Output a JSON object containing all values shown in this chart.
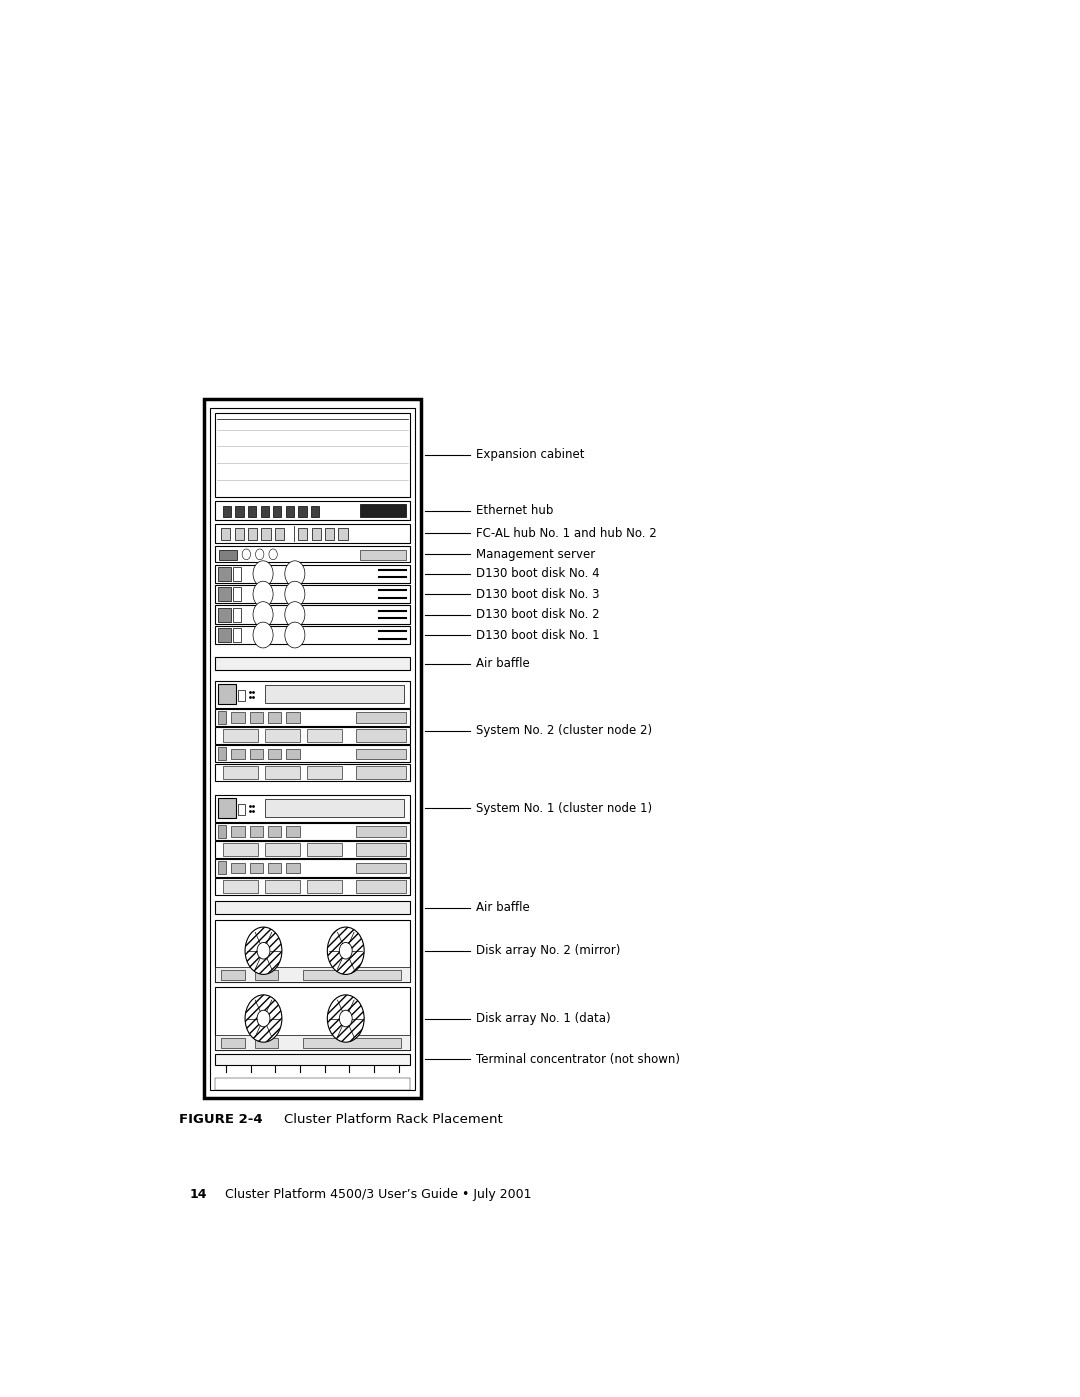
{
  "fig_width": 10.8,
  "fig_height": 13.97,
  "bg_color": "#ffffff",
  "label_texts": [
    "Expansion cabinet",
    "Ethernet hub",
    "FC-AL hub No. 1 and hub No. 2",
    "Management server",
    "D130 boot disk No. 4",
    "D130 boot disk No. 3",
    "D130 boot disk No. 2",
    "D130 boot disk No. 1",
    "Air baffle",
    "System No. 2 (cluster node 2)",
    "System No. 1 (cluster node 1)",
    "Air baffle",
    "Disk array No. 2 (mirror)",
    "Disk array No. 1 (data)",
    "Terminal concentrator (not shown)"
  ],
  "figure_caption_bold": "FIGURE 2-4",
  "figure_caption_normal": "    Cluster Platform Rack Placement",
  "footer_bold": "14",
  "footer_normal": "    Cluster Platform 4500/3 User’s Guide • July 2001"
}
